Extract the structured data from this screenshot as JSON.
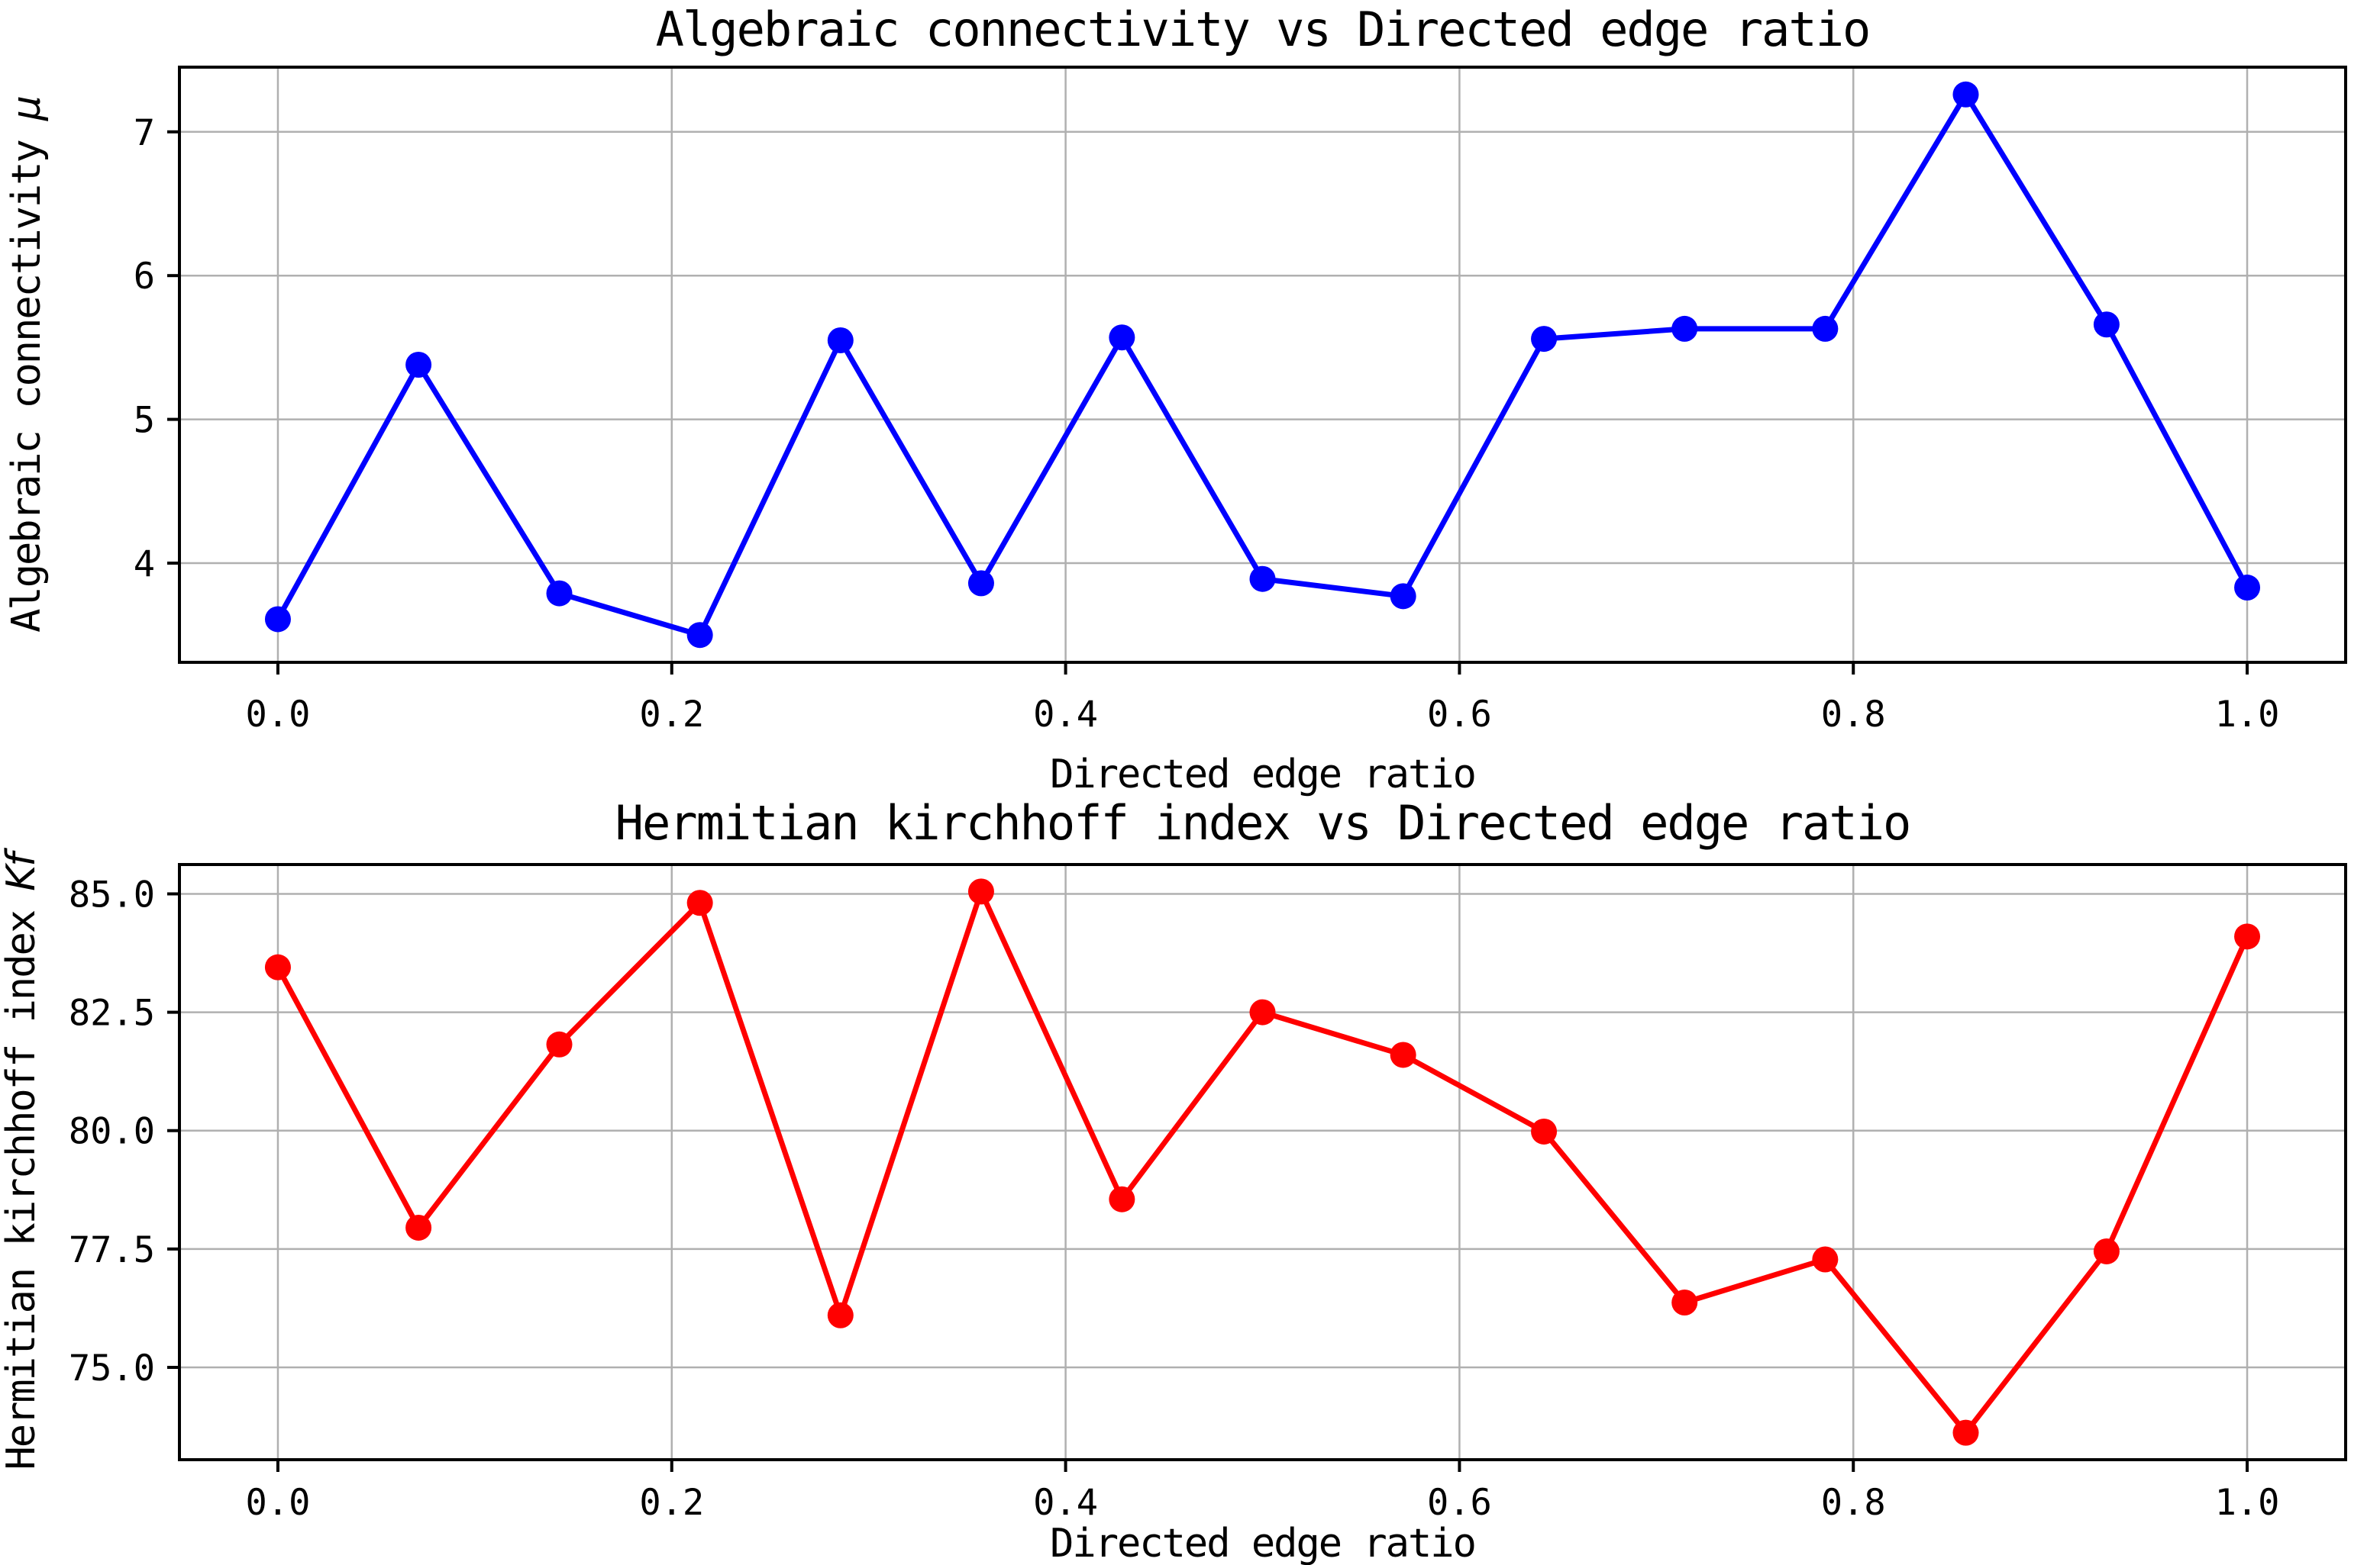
{
  "figure": {
    "background": "#ffffff"
  },
  "style": {
    "grid_color": "#b0b0b0",
    "spine_color": "#000000",
    "tick_color": "#000000",
    "text_color": "#000000",
    "top_series_color": "#0000ff",
    "bottom_series_color": "#ff0000"
  },
  "chart_data": [
    {
      "type": "line",
      "title": "Algebraic connectivity vs Directed edge ratio",
      "xlabel": "Directed edge ratio",
      "ylabel": "Algebraic connectivity",
      "ylabel_math": "μ",
      "x": [
        0.0,
        0.0714,
        0.1429,
        0.2143,
        0.2857,
        0.3571,
        0.4286,
        0.5,
        0.5714,
        0.6429,
        0.7143,
        0.7857,
        0.8571,
        0.9286,
        1.0
      ],
      "series": [
        {
          "name": "algebraic-connectivity",
          "color": "#0000ff",
          "marker": "circle",
          "values": [
            3.61,
            5.38,
            3.79,
            3.5,
            5.55,
            3.86,
            5.57,
            3.89,
            3.77,
            5.56,
            5.63,
            5.63,
            7.26,
            5.66,
            3.83
          ]
        }
      ],
      "xlim": [
        -0.05,
        1.05
      ],
      "ylim": [
        3.31,
        7.45
      ],
      "xticks": {
        "values": [
          0.0,
          0.2,
          0.4,
          0.6,
          0.8,
          1.0
        ],
        "labels": [
          "0.0",
          "0.2",
          "0.4",
          "0.6",
          "0.8",
          "1.0"
        ]
      },
      "yticks": {
        "values": [
          4,
          5,
          6,
          7
        ],
        "labels": [
          "4",
          "5",
          "6",
          "7"
        ]
      },
      "grid": true,
      "legend": "none"
    },
    {
      "type": "line",
      "title": "Hermitian kirchhoff index vs Directed edge ratio",
      "xlabel": "Directed edge ratio",
      "ylabel": "Hermitian kirchhoff index",
      "ylabel_math": "Kf",
      "x": [
        0.0,
        0.0714,
        0.1429,
        0.2143,
        0.2857,
        0.3571,
        0.4286,
        0.5,
        0.5714,
        0.6429,
        0.7143,
        0.7857,
        0.8571,
        0.9286,
        1.0
      ],
      "series": [
        {
          "name": "hermitian-kirchhoff-index",
          "color": "#ff0000",
          "marker": "circle",
          "values": [
            83.45,
            77.95,
            81.82,
            84.81,
            76.1,
            85.05,
            78.55,
            82.5,
            81.6,
            79.98,
            76.37,
            77.28,
            73.62,
            77.45,
            84.1
          ]
        }
      ],
      "xlim": [
        -0.05,
        1.05
      ],
      "ylim": [
        73.05,
        85.62
      ],
      "xticks": {
        "values": [
          0.0,
          0.2,
          0.4,
          0.6,
          0.8,
          1.0
        ],
        "labels": [
          "0.0",
          "0.2",
          "0.4",
          "0.6",
          "0.8",
          "1.0"
        ]
      },
      "yticks": {
        "values": [
          75.0,
          77.5,
          80.0,
          82.5,
          85.0
        ],
        "labels": [
          "75.0",
          "77.5",
          "80.0",
          "82.5",
          "85.0"
        ]
      },
      "grid": true,
      "legend": "none"
    }
  ]
}
